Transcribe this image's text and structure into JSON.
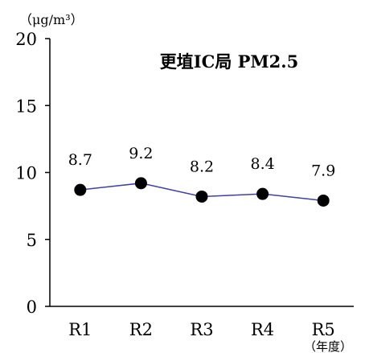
{
  "chart_data": {
    "type": "line",
    "title": "更埴IC局 PM2.5",
    "unit_label": "（μg/m³）",
    "xlabel": "（年度）",
    "ylabel": "",
    "categories": [
      "R1",
      "R2",
      "R3",
      "R4",
      "R5"
    ],
    "series": [
      {
        "values": [
          8.7,
          9.2,
          8.2,
          8.4,
          7.9
        ],
        "data_labels": [
          "8.7",
          "9.2",
          "8.2",
          "8.4",
          "7.9"
        ],
        "line_color": "#3f3fa8",
        "marker_color": "#000000"
      }
    ],
    "ylim": [
      0,
      20
    ],
    "yticks": [
      0,
      5,
      10,
      15,
      20
    ],
    "ytick_labels": [
      "0",
      "5",
      "10",
      "15",
      "20"
    ],
    "grid": false,
    "legend": "none"
  }
}
